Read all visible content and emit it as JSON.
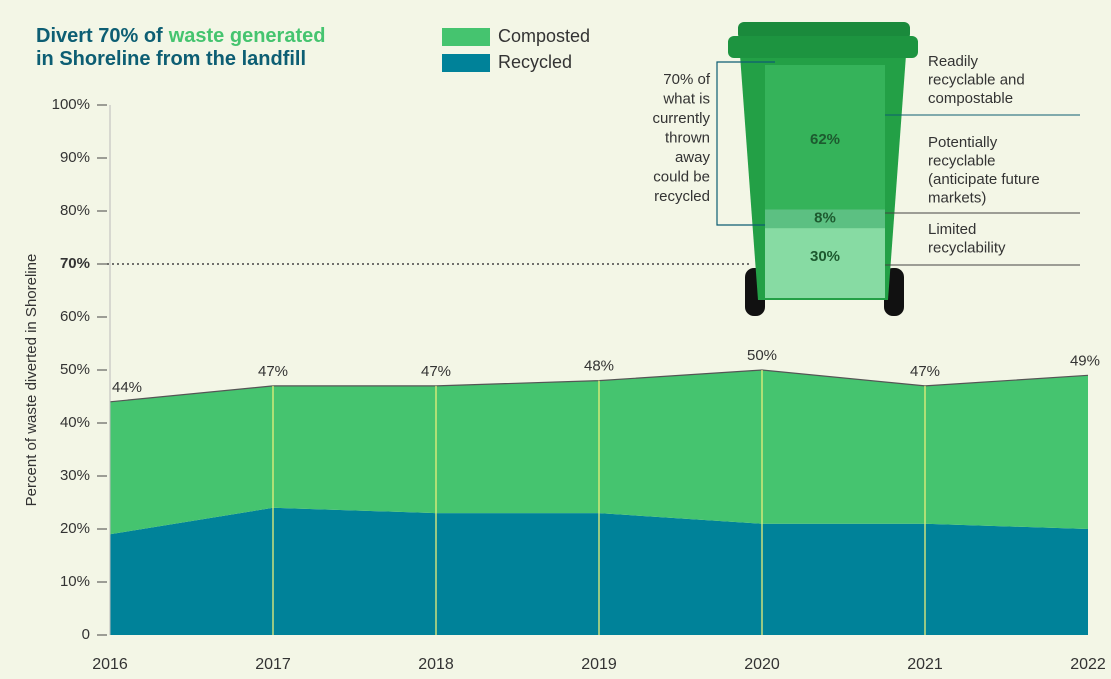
{
  "chart_data": {
    "type": "stacked-area",
    "title": [
      "Divert 70% of",
      "waste generated",
      "in Shoreline from the landfill"
    ],
    "y_label": "Percent of waste diverted in Shoreline",
    "x": [
      2016,
      2017,
      2018,
      2019,
      2020,
      2021,
      2022
    ],
    "series": [
      {
        "name": "Recycled",
        "color": "#008299",
        "values": [
          19,
          24,
          23,
          23,
          21,
          21,
          20
        ]
      },
      {
        "name": "Composted",
        "color": "#45c46f",
        "values": [
          25,
          23,
          24,
          25,
          29,
          26,
          29
        ]
      }
    ],
    "totals": {
      "values": [
        44,
        47,
        47,
        48,
        50,
        47,
        49
      ],
      "value_labels": [
        "44%",
        "47%",
        "47%",
        "48%",
        "50%",
        "47%",
        "49%"
      ]
    },
    "xlim": [
      2016,
      2022
    ],
    "xticks": [
      2016,
      2017,
      2018,
      2019,
      2020,
      2021,
      2022
    ],
    "ylim": [
      0,
      100
    ],
    "yticks": [
      0,
      {
        "value": 10,
        "label": "10%"
      },
      {
        "value": 20,
        "label": "20%"
      },
      {
        "value": 30,
        "label": "30%"
      },
      {
        "value": 40,
        "label": "40%"
      },
      {
        "value": 50,
        "label": "50%"
      },
      {
        "value": 60,
        "label": "60%"
      },
      {
        "value": 70,
        "label": "70%"
      },
      {
        "value": 80,
        "label": "80%"
      },
      {
        "value": 90,
        "label": "90%"
      },
      {
        "value": 100,
        "label": "100%"
      }
    ],
    "target": 70
  },
  "infographic": {
    "note": [
      "70% of",
      "what is",
      "currently",
      "thrown",
      "away",
      "could be",
      "recycled"
    ],
    "values": [
      62,
      8,
      30
    ],
    "value_labels": [
      "62%",
      "8%",
      "30%"
    ],
    "colors": [
      "#35b35a",
      "#5cc082",
      "#87dba3"
    ],
    "descriptions": [
      [
        "Readily",
        "recyclable and",
        "compostable"
      ],
      [
        "Potentially",
        "recyclable",
        "(anticipate future",
        "markets)"
      ],
      [
        "Limited",
        "recyclability"
      ]
    ]
  }
}
